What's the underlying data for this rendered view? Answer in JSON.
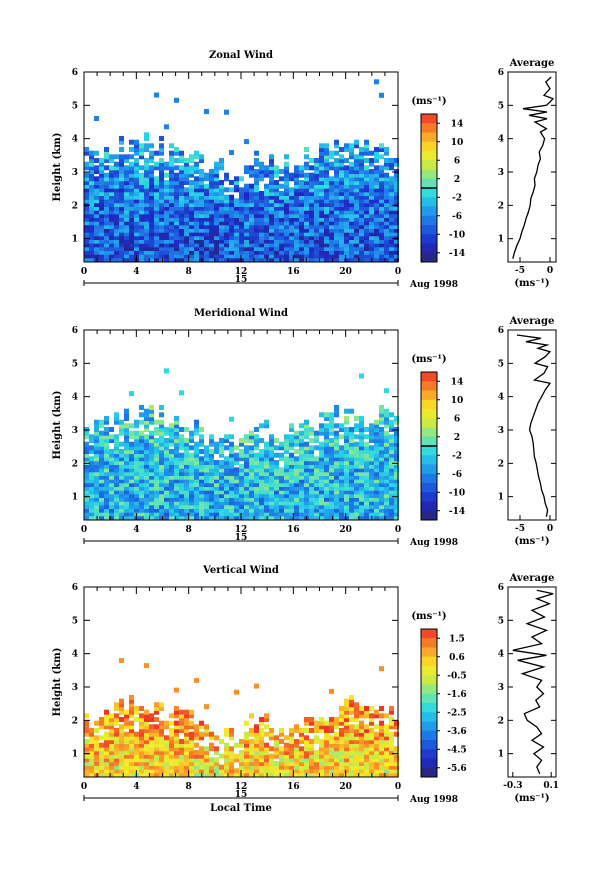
{
  "chart_data": [
    {
      "type": "heatmap",
      "title": "Zonal Wind",
      "ylabel": "Height (km)",
      "ylim": [
        0.3,
        6
      ],
      "yticks": [
        1,
        2,
        3,
        4,
        5,
        6
      ],
      "x_ticks": [
        "0",
        "4",
        "8",
        "12",
        "16",
        "20",
        "0"
      ],
      "date_label": "15",
      "date_suffix": "Aug 1998",
      "colorbar": {
        "unit": "(ms⁻¹)",
        "tick_labels": [
          "14",
          "10",
          "6",
          "2",
          "-2",
          "-6",
          "-10",
          "-14"
        ],
        "range": [
          -16,
          16
        ],
        "zero_line": true
      },
      "mean_value_ms": -8,
      "top_km": 3.4,
      "profile": {
        "title": "Average",
        "xlabel": "(ms⁻¹)",
        "xlim": [
          -7,
          1
        ],
        "xticks": [
          "-5",
          "0"
        ],
        "yticks": [
          1,
          2,
          3,
          4,
          5,
          6
        ],
        "points": [
          [
            -6.2,
            0.4
          ],
          [
            -5.9,
            0.6
          ],
          [
            -5.5,
            0.8
          ],
          [
            -5.0,
            1.0
          ],
          [
            -4.7,
            1.2
          ],
          [
            -4.3,
            1.4
          ],
          [
            -4.0,
            1.6
          ],
          [
            -3.6,
            1.8
          ],
          [
            -3.3,
            2.0
          ],
          [
            -3.2,
            2.2
          ],
          [
            -2.8,
            2.4
          ],
          [
            -2.5,
            2.6
          ],
          [
            -2.6,
            2.8
          ],
          [
            -2.2,
            3.0
          ],
          [
            -2.0,
            3.2
          ],
          [
            -1.6,
            3.4
          ],
          [
            -1.8,
            3.6
          ],
          [
            -1.2,
            3.8
          ],
          [
            -0.9,
            4.0
          ],
          [
            -1.6,
            4.2
          ],
          [
            -0.6,
            4.3
          ],
          [
            -2.5,
            4.5
          ],
          [
            -0.5,
            4.6
          ],
          [
            -3.5,
            4.7
          ],
          [
            -0.5,
            4.8
          ],
          [
            -4.5,
            4.9
          ],
          [
            -0.6,
            5.0
          ],
          [
            0.0,
            5.1
          ],
          [
            0.5,
            5.2
          ],
          [
            -1.0,
            5.3
          ],
          [
            0.0,
            5.5
          ],
          [
            -0.7,
            5.7
          ],
          [
            0.2,
            5.85
          ]
        ]
      }
    },
    {
      "type": "heatmap",
      "title": "Meridional Wind",
      "ylabel": "Height (km)",
      "ylim": [
        0.3,
        6
      ],
      "yticks": [
        1,
        2,
        3,
        4,
        5,
        6
      ],
      "x_ticks": [
        "0",
        "4",
        "8",
        "12",
        "16",
        "20",
        "0"
      ],
      "date_label": "15",
      "date_suffix": "Aug 1998",
      "colorbar": {
        "unit": "(ms⁻¹)",
        "tick_labels": [
          "14",
          "10",
          "6",
          "2",
          "-2",
          "-6",
          "-10",
          "-14"
        ],
        "range": [
          -16,
          16
        ],
        "zero_line": true
      },
      "mean_value_ms": -3,
      "top_km": 3.0,
      "profile": {
        "title": "Average",
        "xlabel": "(ms⁻¹)",
        "xlim": [
          -7,
          1
        ],
        "xticks": [
          "-5",
          "0"
        ],
        "yticks": [
          1,
          2,
          3,
          4,
          5,
          6
        ],
        "points": [
          [
            -0.6,
            0.4
          ],
          [
            -0.4,
            0.6
          ],
          [
            -0.8,
            0.8
          ],
          [
            -1.0,
            1.0
          ],
          [
            -1.4,
            1.2
          ],
          [
            -1.6,
            1.4
          ],
          [
            -1.9,
            1.6
          ],
          [
            -2.1,
            1.8
          ],
          [
            -2.3,
            2.0
          ],
          [
            -2.6,
            2.2
          ],
          [
            -2.7,
            2.4
          ],
          [
            -2.8,
            2.6
          ],
          [
            -3.0,
            2.8
          ],
          [
            -3.4,
            3.0
          ],
          [
            -3.2,
            3.2
          ],
          [
            -2.8,
            3.4
          ],
          [
            -2.4,
            3.6
          ],
          [
            -2.0,
            3.8
          ],
          [
            -1.4,
            4.0
          ],
          [
            -0.8,
            4.2
          ],
          [
            0.0,
            4.4
          ],
          [
            -2.6,
            4.5
          ],
          [
            -1.0,
            4.7
          ],
          [
            -0.4,
            4.9
          ],
          [
            -2.5,
            5.0
          ],
          [
            -0.8,
            5.2
          ],
          [
            0.0,
            5.35
          ],
          [
            -2.0,
            5.45
          ],
          [
            -0.5,
            5.55
          ],
          [
            -4.0,
            5.65
          ],
          [
            -1.5,
            5.75
          ],
          [
            -5.5,
            5.85
          ]
        ]
      }
    },
    {
      "type": "heatmap",
      "title": "Vertical Wind",
      "ylabel": "Height (km)",
      "xlabel": "Local Time",
      "ylim": [
        0.3,
        6
      ],
      "yticks": [
        1,
        2,
        3,
        4,
        5,
        6
      ],
      "x_ticks": [
        "0",
        "4",
        "8",
        "12",
        "16",
        "20",
        "0"
      ],
      "date_label": "15",
      "date_suffix": "Aug 1998",
      "colorbar": {
        "unit": "(ms⁻¹)",
        "tick_labels": [
          "1.5",
          "0.6",
          "-0.5",
          "-1.6",
          "-2.5",
          "-3.6",
          "-4.5",
          "-5.6"
        ],
        "range": [
          -6,
          2
        ],
        "zero_line": false
      },
      "mean_value_ms": 0.6,
      "top_km": 1.9,
      "profile": {
        "title": "Average",
        "xlabel": "(ms⁻¹)",
        "xlim": [
          -0.35,
          0.15
        ],
        "xticks": [
          "-0.3",
          "0.1"
        ],
        "yticks": [
          1,
          2,
          3,
          4,
          5,
          6
        ],
        "points": [
          [
            -0.02,
            0.4
          ],
          [
            -0.05,
            0.6
          ],
          [
            0.0,
            0.8
          ],
          [
            -0.08,
            1.0
          ],
          [
            0.02,
            1.2
          ],
          [
            -0.1,
            1.4
          ],
          [
            0.0,
            1.6
          ],
          [
            -0.05,
            1.8
          ],
          [
            -0.15,
            2.0
          ],
          [
            -0.18,
            2.2
          ],
          [
            -0.02,
            2.4
          ],
          [
            -0.06,
            2.6
          ],
          [
            0.02,
            2.8
          ],
          [
            -0.05,
            3.0
          ],
          [
            0.0,
            3.2
          ],
          [
            -0.2,
            3.4
          ],
          [
            0.02,
            3.6
          ],
          [
            -0.25,
            3.8
          ],
          [
            0.05,
            3.95
          ],
          [
            -0.3,
            4.1
          ],
          [
            0.0,
            4.3
          ],
          [
            -0.1,
            4.5
          ],
          [
            0.05,
            4.7
          ],
          [
            -0.15,
            4.9
          ],
          [
            0.03,
            5.1
          ],
          [
            -0.1,
            5.3
          ],
          [
            0.08,
            5.5
          ],
          [
            -0.05,
            5.65
          ],
          [
            0.12,
            5.8
          ],
          [
            -0.05,
            5.9
          ]
        ]
      }
    }
  ]
}
